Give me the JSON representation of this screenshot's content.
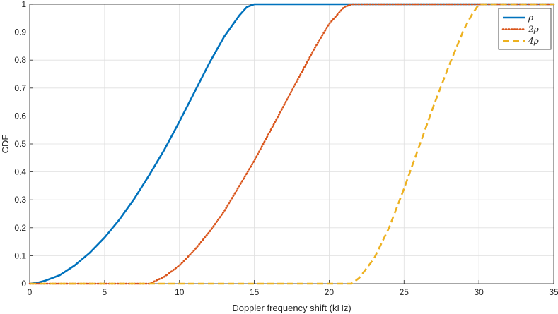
{
  "chart_data": {
    "type": "line",
    "title": "",
    "xlabel": "Doppler frequency shift (kHz)",
    "ylabel": "CDF",
    "xlim": [
      0,
      35
    ],
    "ylim": [
      0,
      1
    ],
    "xticks": [
      0,
      5,
      10,
      15,
      20,
      25,
      30,
      35
    ],
    "yticks": [
      0,
      0.1,
      0.2,
      0.3,
      0.4,
      0.5,
      0.6,
      0.7,
      0.8,
      0.9,
      1
    ],
    "xtick_labels": [
      "0",
      "5",
      "10",
      "15",
      "20",
      "25",
      "30",
      "35"
    ],
    "ytick_labels": [
      "0",
      "0.1",
      "0.2",
      "0.3",
      "0.4",
      "0.5",
      "0.6",
      "0.7",
      "0.8",
      "0.9",
      "1"
    ],
    "grid": true,
    "legend_position": "top-right",
    "series": [
      {
        "name": "ρ",
        "color": "#0072BD",
        "style": "solid",
        "x": [
          0,
          0.5,
          1,
          2,
          3,
          4,
          5,
          6,
          7,
          8,
          9,
          10,
          11,
          12,
          13,
          14,
          14.5,
          15,
          21,
          35
        ],
        "y": [
          0,
          0.003,
          0.01,
          0.03,
          0.065,
          0.11,
          0.165,
          0.23,
          0.305,
          0.39,
          0.48,
          0.58,
          0.685,
          0.79,
          0.885,
          0.96,
          0.99,
          1,
          1,
          1
        ]
      },
      {
        "name": "2ρ",
        "color": "#D95319",
        "style": "dotted",
        "x": [
          0,
          8,
          9,
          10,
          11,
          12,
          13,
          14,
          15,
          16,
          17,
          18,
          19,
          20,
          21,
          21.5,
          35
        ],
        "y": [
          0,
          0,
          0.025,
          0.065,
          0.12,
          0.185,
          0.26,
          0.35,
          0.44,
          0.54,
          0.64,
          0.74,
          0.84,
          0.93,
          0.99,
          1,
          1
        ]
      },
      {
        "name": "4ρ",
        "color": "#EDB120",
        "style": "dashed",
        "x": [
          0,
          21.5,
          22,
          23,
          24,
          25,
          26,
          27,
          28,
          29,
          29.5,
          30,
          35
        ],
        "y": [
          0,
          0,
          0.02,
          0.09,
          0.2,
          0.34,
          0.49,
          0.64,
          0.78,
          0.91,
          0.96,
          1,
          1
        ]
      }
    ]
  }
}
